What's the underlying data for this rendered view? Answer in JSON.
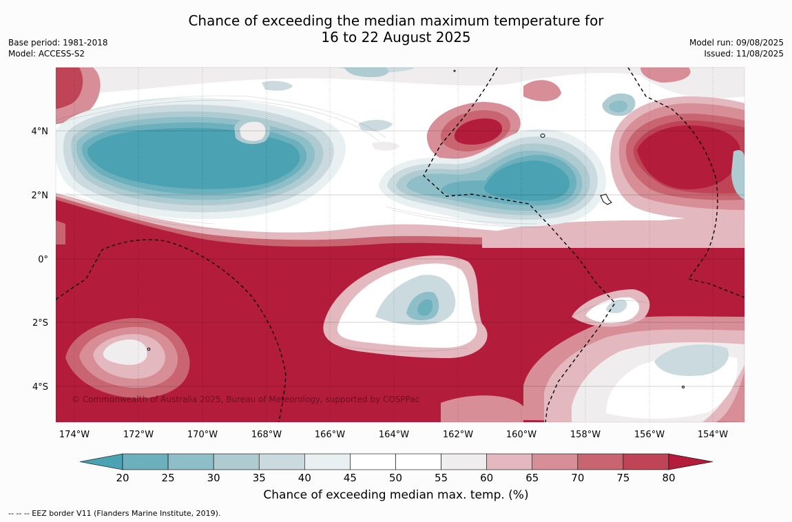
{
  "title_line1": "Chance of exceeding the median maximum temperature for",
  "title_line2": "16 to 22 August 2025",
  "base_period": "Base period: 1981-2018",
  "model": "Model: ACCESS-S2",
  "model_run": "Model run: 09/08/2025",
  "issued": "Issued: 11/08/2025",
  "copyright": "© Commonwealth of Australia 2025, Bureau of Meteorology, supported by COSPPac",
  "colorbar_label": "Chance of exceeding median max. temp. (%)",
  "footer": "-- -- -- EEZ border V11 (Flanders Marine Institute, 2019).",
  "lat_labels": [
    "4°N",
    "2°N",
    "0°",
    "2°S",
    "4°S"
  ],
  "lon_labels": [
    "174°W",
    "172°W",
    "170°W",
    "168°W",
    "166°W",
    "164°W",
    "162°W",
    "160°W",
    "158°W",
    "156°W",
    "154°W"
  ],
  "colorbar": {
    "ticks": [
      20,
      25,
      30,
      35,
      40,
      45,
      50,
      55,
      60,
      65,
      70,
      75,
      80
    ],
    "colors": [
      "#4aa2b3",
      "#6cafbd",
      "#8ebfc9",
      "#adcbd0",
      "#cbdade",
      "#e8f0f2",
      "#ffffff",
      "#ffffff",
      "#efeded",
      "#e3b8be",
      "#d78e97",
      "#c96570",
      "#bf4556",
      "#b31c3b"
    ]
  }
}
